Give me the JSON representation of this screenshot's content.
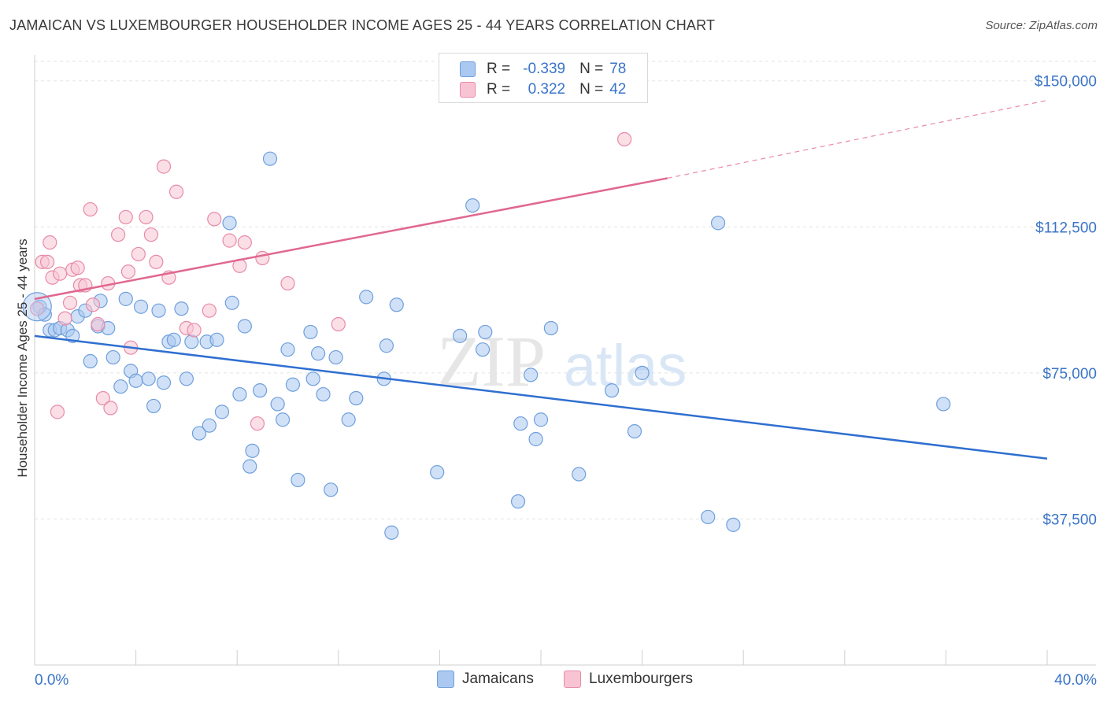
{
  "title": "JAMAICAN VS LUXEMBOURGER HOUSEHOLDER INCOME AGES 25 - 44 YEARS CORRELATION CHART",
  "source": "Source: ZipAtlas.com",
  "watermark": {
    "zip": "ZIP",
    "atlas": "atlas"
  },
  "legend": {
    "rows": [
      {
        "r_label": "R =",
        "r_value": "-0.339",
        "n_label": "N =",
        "n_value": "78",
        "color": "#aac8f0",
        "border": "#6f9fdc"
      },
      {
        "r_label": "R =",
        "r_value": "0.322",
        "n_label": "N =",
        "n_value": "42",
        "color": "#f8c4d4",
        "border": "#e88aa8"
      }
    ]
  },
  "bottom_legend": [
    {
      "label": "Jamaicans",
      "color": "#aac8f0",
      "border": "#6f9fdc"
    },
    {
      "label": "Luxembourgers",
      "color": "#f8c4d4",
      "border": "#e88aa8"
    }
  ],
  "chart_data": {
    "type": "scatter",
    "xlabel": "",
    "ylabel": "Householder Income Ages 25 - 44 years",
    "xlim": [
      0,
      40
    ],
    "ylim": [
      0,
      155000
    ],
    "x_tick_labels": [
      {
        "value": 0,
        "label": "0.0%"
      },
      {
        "value": 40,
        "label": "40.0%"
      }
    ],
    "y_tick_labels": [
      {
        "value": 37500,
        "label": "$37,500"
      },
      {
        "value": 75000,
        "label": "$75,000"
      },
      {
        "value": 112500,
        "label": "$112,500"
      },
      {
        "value": 150000,
        "label": "$150,000"
      }
    ],
    "series": [
      {
        "name": "Jamaicans",
        "color": "#6f9fdc",
        "fill": "#aac8f0",
        "trend": {
          "x0": 0,
          "y0": 84500,
          "x1": 40,
          "y1": 53000
        },
        "points": [
          [
            0.2,
            92000
          ],
          [
            0.4,
            90000
          ],
          [
            0.6,
            86000
          ],
          [
            0.8,
            86000
          ],
          [
            1.0,
            86500
          ],
          [
            1.3,
            86000
          ],
          [
            1.5,
            84500
          ],
          [
            1.7,
            89500
          ],
          [
            2.0,
            91000
          ],
          [
            2.2,
            78000
          ],
          [
            2.5,
            87000
          ],
          [
            2.6,
            93500
          ],
          [
            2.9,
            86500
          ],
          [
            3.1,
            79000
          ],
          [
            3.4,
            71500
          ],
          [
            3.6,
            94000
          ],
          [
            3.8,
            75500
          ],
          [
            4.0,
            73000
          ],
          [
            4.2,
            92000
          ],
          [
            4.5,
            73500
          ],
          [
            4.7,
            66500
          ],
          [
            4.9,
            91000
          ],
          [
            5.1,
            72500
          ],
          [
            5.3,
            83000
          ],
          [
            5.5,
            83500
          ],
          [
            5.8,
            91500
          ],
          [
            6.0,
            73500
          ],
          [
            6.2,
            83000
          ],
          [
            6.5,
            59500
          ],
          [
            6.8,
            83000
          ],
          [
            6.9,
            61500
          ],
          [
            7.2,
            83500
          ],
          [
            7.4,
            65000
          ],
          [
            7.7,
            113500
          ],
          [
            7.8,
            93000
          ],
          [
            8.1,
            69500
          ],
          [
            8.3,
            87000
          ],
          [
            8.5,
            51000
          ],
          [
            8.6,
            55000
          ],
          [
            8.9,
            70500
          ],
          [
            9.3,
            130000
          ],
          [
            9.6,
            67000
          ],
          [
            9.8,
            63000
          ],
          [
            10.0,
            81000
          ],
          [
            10.2,
            72000
          ],
          [
            10.4,
            47500
          ],
          [
            10.9,
            85500
          ],
          [
            11.0,
            73500
          ],
          [
            11.2,
            80000
          ],
          [
            11.4,
            69500
          ],
          [
            11.7,
            45000
          ],
          [
            11.9,
            79000
          ],
          [
            12.4,
            63000
          ],
          [
            12.7,
            68500
          ],
          [
            13.1,
            94500
          ],
          [
            13.8,
            73500
          ],
          [
            13.9,
            82000
          ],
          [
            14.1,
            34000
          ],
          [
            14.3,
            92500
          ],
          [
            15.9,
            49500
          ],
          [
            16.8,
            84500
          ],
          [
            17.3,
            118000
          ],
          [
            17.7,
            81000
          ],
          [
            17.8,
            85500
          ],
          [
            19.1,
            42000
          ],
          [
            19.2,
            62000
          ],
          [
            19.6,
            74500
          ],
          [
            19.8,
            58000
          ],
          [
            20.0,
            63000
          ],
          [
            20.4,
            86500
          ],
          [
            21.5,
            49000
          ],
          [
            22.8,
            70500
          ],
          [
            23.7,
            60000
          ],
          [
            24.0,
            75000
          ],
          [
            26.6,
            38000
          ],
          [
            27.0,
            113500
          ],
          [
            27.6,
            36000
          ],
          [
            35.9,
            67000
          ]
        ]
      },
      {
        "name": "Luxembourgers",
        "color": "#e88aa8",
        "fill": "#f8c4d4",
        "trend": {
          "x0": 0,
          "y0": 94000,
          "x1": 25,
          "y1": 125000
        },
        "trend_dashed_to": {
          "x": 40,
          "y": 145000
        },
        "points": [
          [
            0.1,
            91500
          ],
          [
            0.3,
            103500
          ],
          [
            0.5,
            103500
          ],
          [
            0.6,
            108500
          ],
          [
            0.7,
            99500
          ],
          [
            0.9,
            65000
          ],
          [
            1.0,
            100500
          ],
          [
            1.2,
            89000
          ],
          [
            1.4,
            93000
          ],
          [
            1.5,
            101500
          ],
          [
            1.7,
            102000
          ],
          [
            1.8,
            97500
          ],
          [
            2.0,
            97500
          ],
          [
            2.2,
            117000
          ],
          [
            2.3,
            92500
          ],
          [
            2.5,
            87500
          ],
          [
            2.7,
            68500
          ],
          [
            2.9,
            98000
          ],
          [
            3.0,
            66000
          ],
          [
            3.3,
            110500
          ],
          [
            3.6,
            115000
          ],
          [
            3.7,
            101000
          ],
          [
            3.8,
            81500
          ],
          [
            4.1,
            105500
          ],
          [
            4.4,
            115000
          ],
          [
            4.6,
            110500
          ],
          [
            4.8,
            103500
          ],
          [
            5.1,
            128000
          ],
          [
            5.3,
            99500
          ],
          [
            5.6,
            121500
          ],
          [
            6.0,
            86500
          ],
          [
            6.3,
            86000
          ],
          [
            6.9,
            91000
          ],
          [
            7.1,
            114500
          ],
          [
            7.7,
            109000
          ],
          [
            8.1,
            102500
          ],
          [
            8.3,
            108500
          ],
          [
            8.8,
            62000
          ],
          [
            9.0,
            104500
          ],
          [
            10.0,
            98000
          ],
          [
            12.0,
            87500
          ],
          [
            23.3,
            135000
          ]
        ]
      }
    ]
  }
}
